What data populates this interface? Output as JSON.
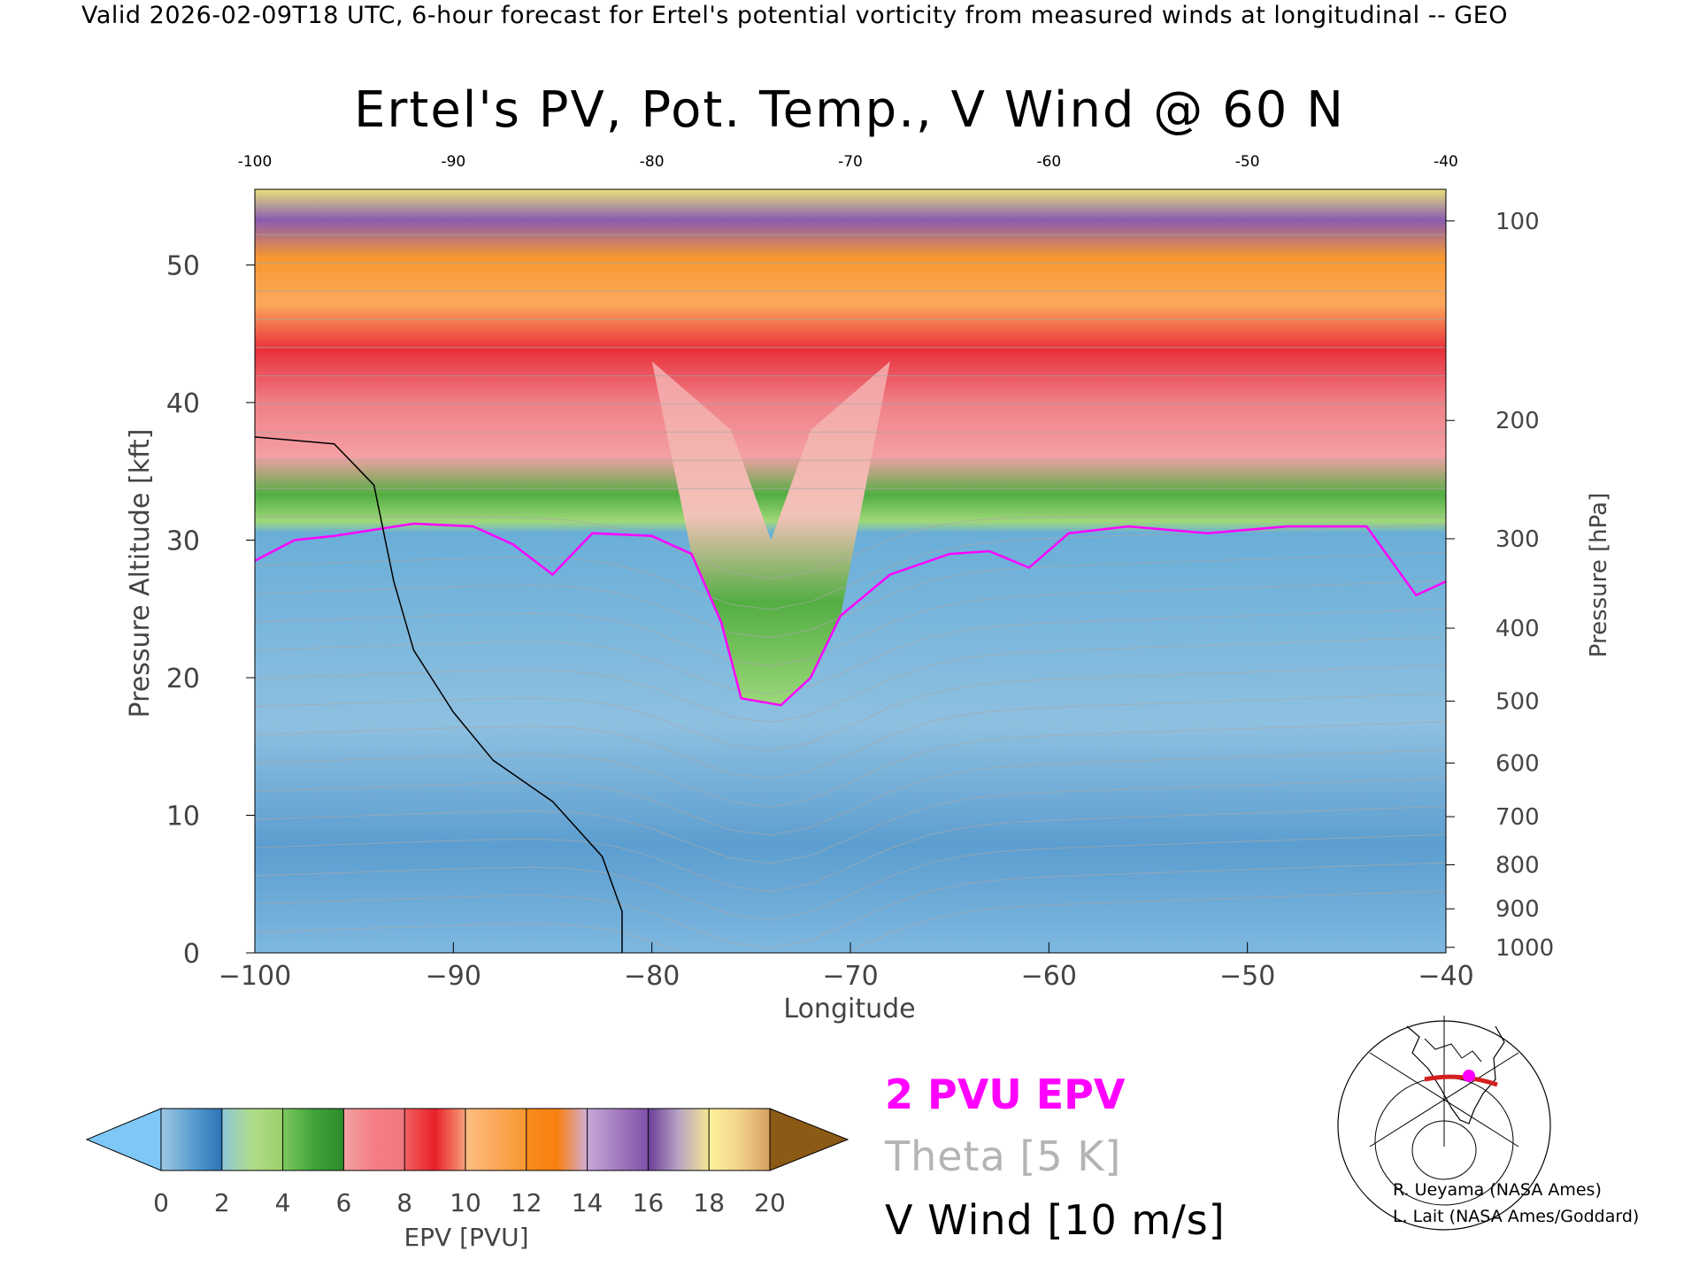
{
  "header": {
    "text": "Valid 2026-02-09T18 UTC, 6-hour forecast for Ertel's potential vorticity from measured winds at longitudinal -- GEO"
  },
  "chart_data": {
    "type": "heatmap",
    "title": "Ertel's PV, Pot. Temp., V Wind @ 60 N",
    "xlabel": "Longitude",
    "ylabel": "Pressure Altitude [kft]",
    "ylabel_right": "Pressure [hPa]",
    "xlim": [
      -100,
      -40
    ],
    "ylim": [
      0,
      55.5
    ],
    "x_ticks": [
      -100,
      -90,
      -80,
      -70,
      -60,
      -50,
      -40
    ],
    "x_tick_labels_bottom": [
      "−100",
      "−90",
      "−80",
      "−70",
      "−60",
      "−50",
      "−40"
    ],
    "x_tick_labels_top": [
      "-100",
      "-90",
      "-80",
      "-70",
      "-60",
      "-50",
      "-40"
    ],
    "y_ticks": [
      0,
      10,
      20,
      30,
      40,
      50
    ],
    "y_tick_labels": [
      "0",
      "10",
      "20",
      "30",
      "40",
      "50"
    ],
    "pressure_ticks": [
      {
        "hpa": 1000,
        "kft": 0.4
      },
      {
        "hpa": 900,
        "kft": 3.2
      },
      {
        "hpa": 800,
        "kft": 6.4
      },
      {
        "hpa": 700,
        "kft": 9.9
      },
      {
        "hpa": 600,
        "kft": 13.8
      },
      {
        "hpa": 500,
        "kft": 18.3
      },
      {
        "hpa": 400,
        "kft": 23.6
      },
      {
        "hpa": 300,
        "kft": 30.1
      },
      {
        "hpa": 200,
        "kft": 38.7
      },
      {
        "hpa": 100,
        "kft": 53.2
      }
    ],
    "fields": {
      "epv_shading": "EPV [PVU]",
      "pv_contour": "2 PVU EPV",
      "theta_contours": "Theta [5 K]",
      "v_wind_contours": "V Wind [10 m/s]"
    },
    "tropopause_2pvu_kft": [
      {
        "x": -100,
        "y": 28.5
      },
      {
        "x": -98,
        "y": 30
      },
      {
        "x": -96,
        "y": 30.3
      },
      {
        "x": -92,
        "y": 31.2
      },
      {
        "x": -89,
        "y": 31
      },
      {
        "x": -87,
        "y": 29.7
      },
      {
        "x": -85,
        "y": 27.5
      },
      {
        "x": -83,
        "y": 30.5
      },
      {
        "x": -80,
        "y": 30.3
      },
      {
        "x": -78,
        "y": 29
      },
      {
        "x": -76.5,
        "y": 24
      },
      {
        "x": -75.5,
        "y": 18.5
      },
      {
        "x": -73.5,
        "y": 18
      },
      {
        "x": -72,
        "y": 20
      },
      {
        "x": -70.5,
        "y": 24.5
      },
      {
        "x": -68,
        "y": 27.5
      },
      {
        "x": -65,
        "y": 29
      },
      {
        "x": -63,
        "y": 29.2
      },
      {
        "x": -61,
        "y": 28
      },
      {
        "x": -59,
        "y": 30.5
      },
      {
        "x": -56,
        "y": 31
      },
      {
        "x": -52,
        "y": 30.5
      },
      {
        "x": -48,
        "y": 31
      },
      {
        "x": -44,
        "y": 31
      },
      {
        "x": -41.5,
        "y": 26
      },
      {
        "x": -40,
        "y": 27
      }
    ],
    "v_wind_zero_contour_kft": [
      {
        "x": -100,
        "y": 37.5
      },
      {
        "x": -96,
        "y": 37
      },
      {
        "x": -94,
        "y": 34
      },
      {
        "x": -93,
        "y": 27
      },
      {
        "x": -92,
        "y": 22
      },
      {
        "x": -90,
        "y": 17.5
      },
      {
        "x": -88,
        "y": 14
      },
      {
        "x": -85,
        "y": 11
      },
      {
        "x": -82.5,
        "y": 7
      },
      {
        "x": -81.5,
        "y": 3
      },
      {
        "x": -81.5,
        "y": 0
      }
    ],
    "colorbar": {
      "label": "EPV [PVU]",
      "ticks": [
        0,
        2,
        4,
        6,
        8,
        10,
        12,
        14,
        16,
        18,
        20
      ],
      "tick_labels": [
        "0",
        "2",
        "4",
        "6",
        "8",
        "10",
        "12",
        "14",
        "16",
        "18",
        "20"
      ],
      "under_color": "#7ec8f8",
      "over_color": "#8b5a14",
      "segments": [
        {
          "from": 0,
          "to": 2,
          "colors": [
            "#9fc8e4",
            "#5a9fd0",
            "#2c74b6"
          ]
        },
        {
          "from": 2,
          "to": 4,
          "colors": [
            "#8cc8d8",
            "#b0dc88",
            "#9cd06c"
          ]
        },
        {
          "from": 4,
          "to": 6,
          "colors": [
            "#80c860",
            "#3fa33a",
            "#2d8a2a"
          ]
        },
        {
          "from": 6,
          "to": 8,
          "colors": [
            "#f0a0a0",
            "#f57e86",
            "#ef7880"
          ]
        },
        {
          "from": 8,
          "to": 10,
          "colors": [
            "#f26060",
            "#e8202a",
            "#f6a07a"
          ]
        },
        {
          "from": 10,
          "to": 12,
          "colors": [
            "#fbbf80",
            "#fca85c",
            "#f8982f"
          ]
        },
        {
          "from": 12,
          "to": 14,
          "colors": [
            "#f88c1c",
            "#f87f10",
            "#d2aed6"
          ]
        },
        {
          "from": 14,
          "to": 16,
          "colors": [
            "#c6a8d8",
            "#a47cc0",
            "#7e50a8"
          ]
        },
        {
          "from": 16,
          "to": 18,
          "colors": [
            "#6a3c98",
            "#b8a4c4",
            "#f4e690"
          ]
        },
        {
          "from": 18,
          "to": 20,
          "colors": [
            "#fff29e",
            "#f2d28a",
            "#d4a060"
          ]
        }
      ]
    },
    "legend": {
      "line1": "2 PVU EPV",
      "line2": "Theta [5 K]",
      "line3": "V Wind [10 m/s]",
      "colors": {
        "pv": "#ff00ff",
        "theta": "#b4b4b4",
        "wind": "#000000"
      }
    }
  },
  "credits": {
    "line1": "R. Ueyama (NASA Ames)",
    "line2": "L. Lait (NASA Ames/Goddard)"
  }
}
